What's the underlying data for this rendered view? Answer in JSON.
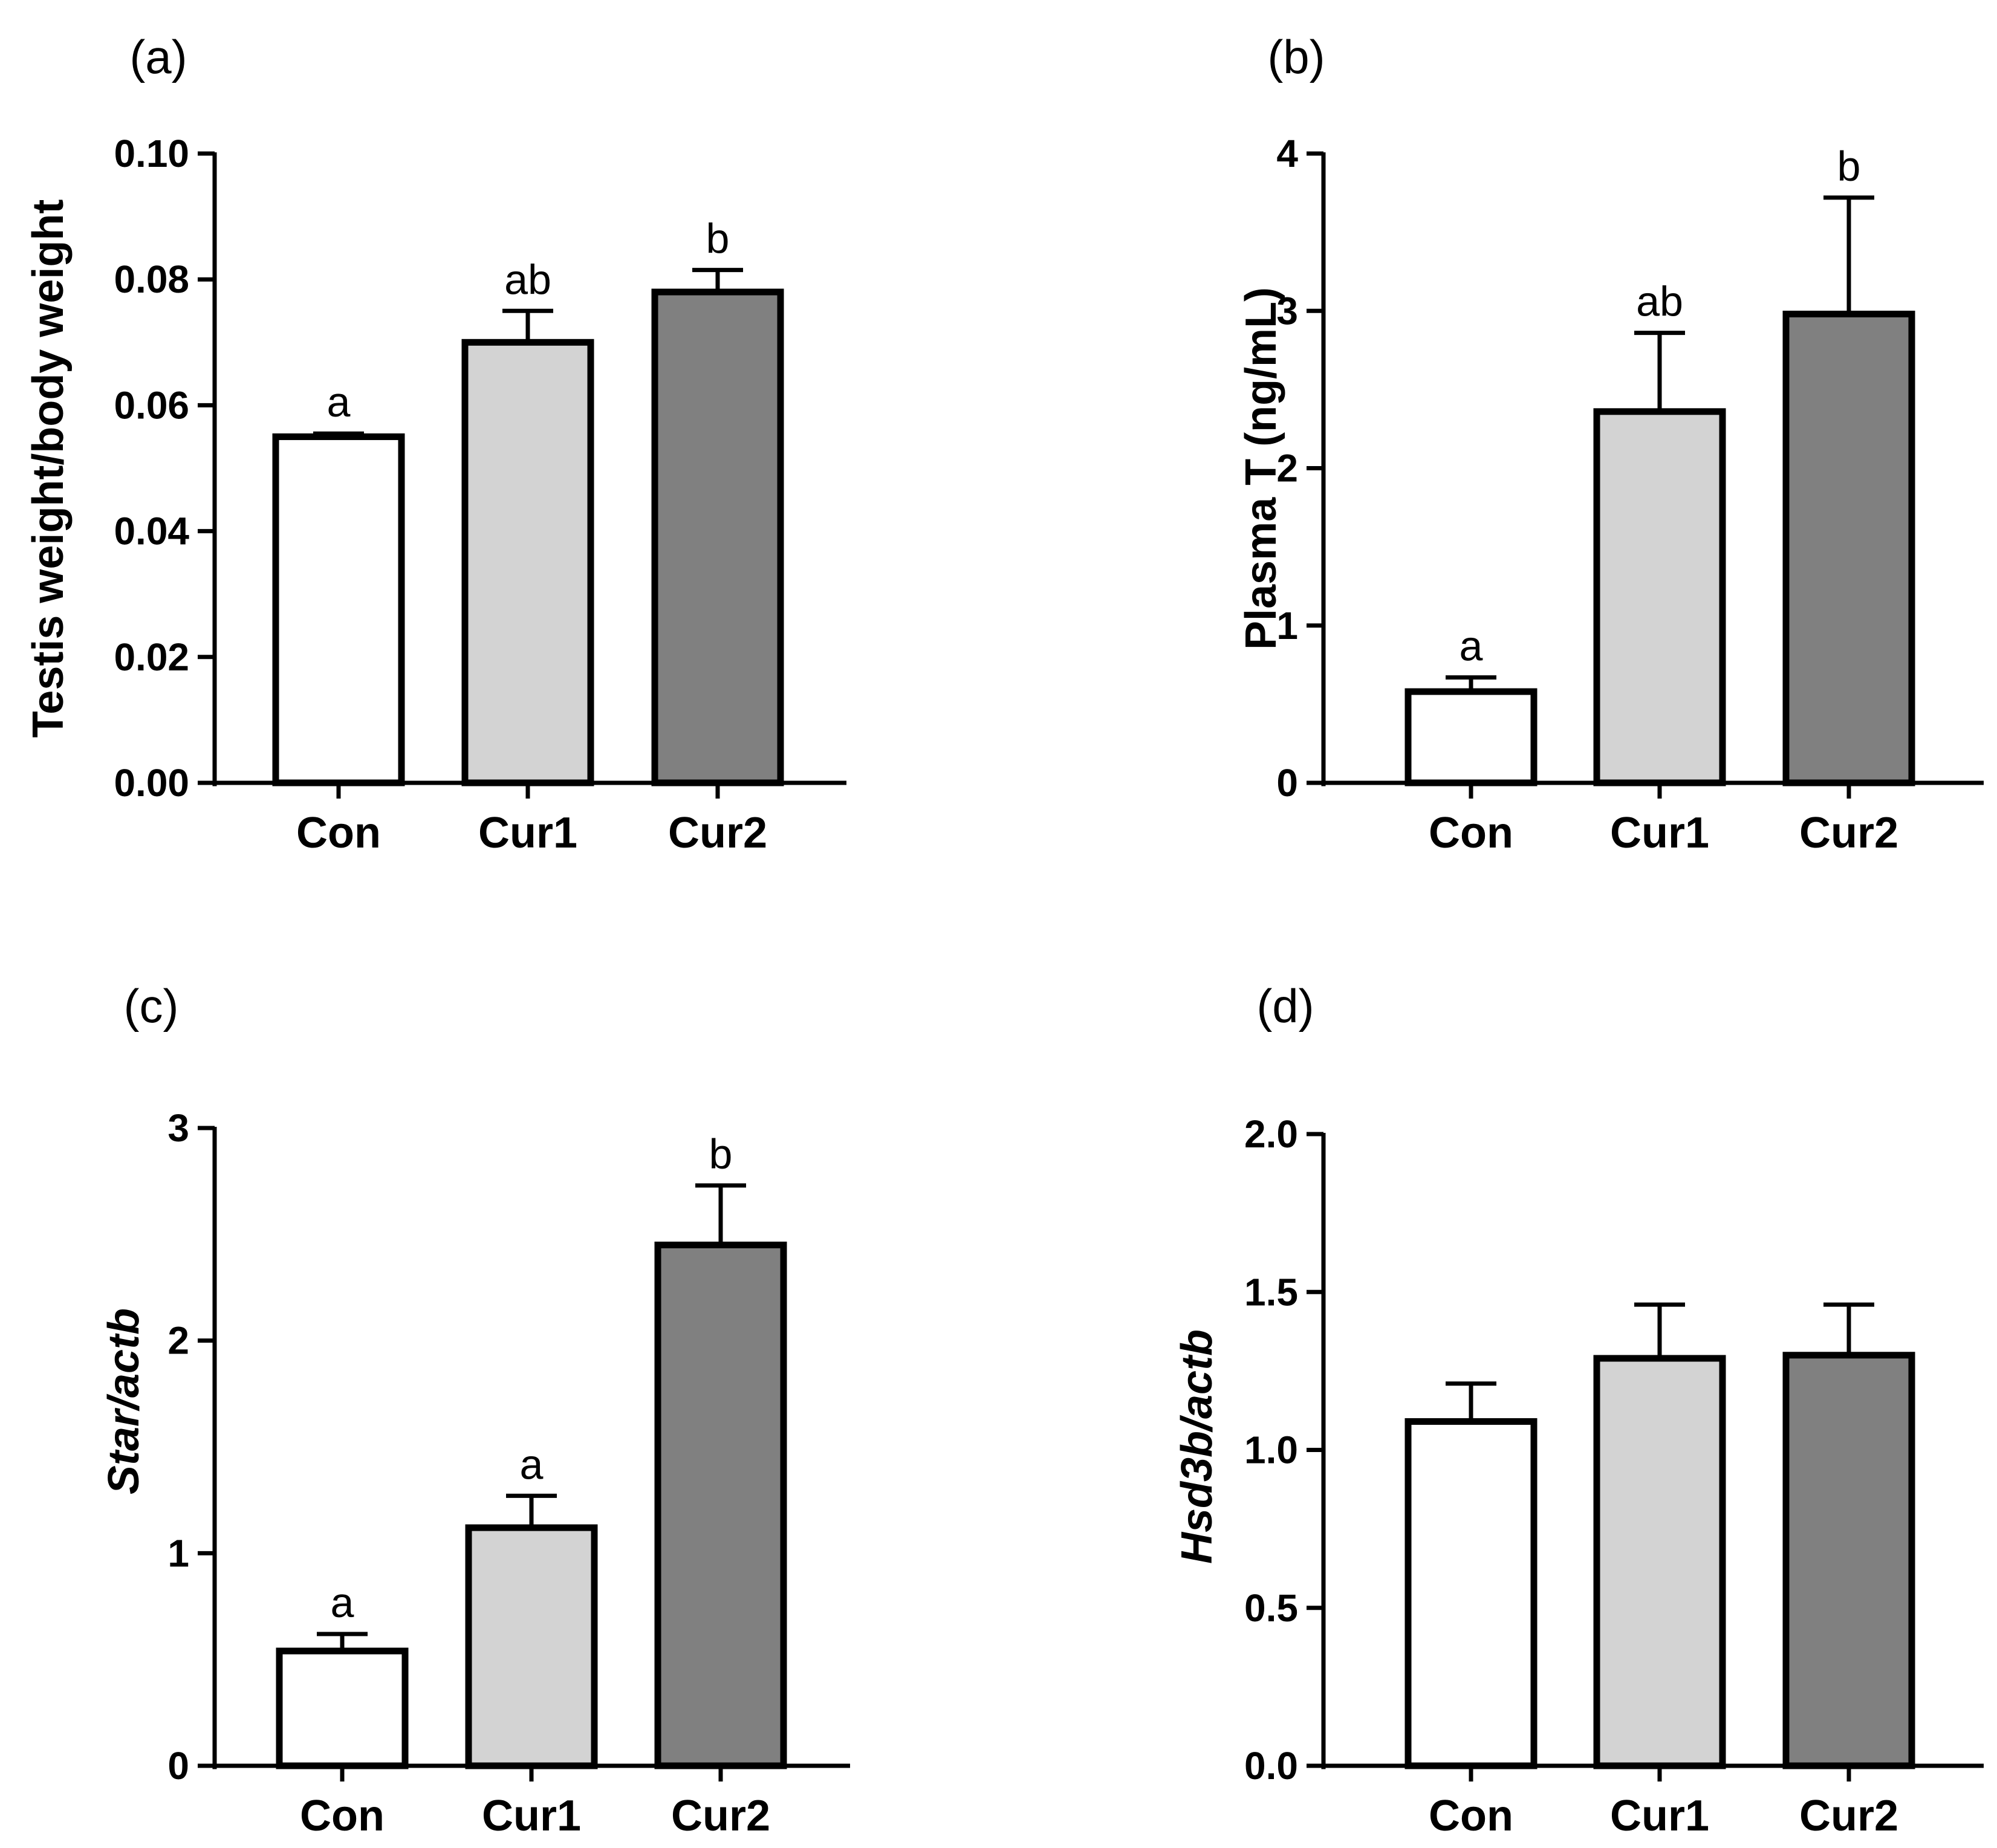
{
  "colors": {
    "Con": "#ffffff",
    "Cur1": "#d3d3d3",
    "Cur2": "#808080",
    "stroke": "#000000"
  },
  "chart_data": [
    {
      "panel": "(a)",
      "type": "bar",
      "categories": [
        "Con",
        "Cur1",
        "Cur2"
      ],
      "values": [
        0.055,
        0.07,
        0.078
      ],
      "errors": [
        0.0005,
        0.005,
        0.0035
      ],
      "significance": [
        "a",
        "ab",
        "b"
      ],
      "ylabel": "Testis weight/body weight",
      "ylabel_italic": false,
      "ylim": [
        0,
        0.1
      ],
      "yticks": [
        0,
        0.02,
        0.04,
        0.06,
        0.08,
        0.1
      ],
      "ytick_labels": [
        "0.00",
        "0.02",
        "0.04",
        "0.06",
        "0.08",
        "0.10"
      ]
    },
    {
      "panel": "(b)",
      "type": "bar",
      "categories": [
        "Con",
        "Cur1",
        "Cur2"
      ],
      "values": [
        0.58,
        2.36,
        2.98
      ],
      "errors": [
        0.09,
        0.5,
        0.74
      ],
      "significance": [
        "a",
        "ab",
        "b"
      ],
      "ylabel": "Plasma T (ng/mL)",
      "ylabel_italic": false,
      "ylim": [
        0,
        4
      ],
      "yticks": [
        0,
        1,
        2,
        3,
        4
      ],
      "ytick_labels": [
        "0",
        "1",
        "2",
        "3",
        "4"
      ]
    },
    {
      "panel": "(c)",
      "type": "bar",
      "categories": [
        "Con",
        "Cur1",
        "Cur2"
      ],
      "values": [
        0.54,
        1.12,
        2.45
      ],
      "errors": [
        0.08,
        0.15,
        0.28
      ],
      "significance": [
        "a",
        "a",
        "b"
      ],
      "ylabel": "Star/actb",
      "ylabel_italic": true,
      "ylim": [
        0,
        3
      ],
      "yticks": [
        0,
        1,
        2,
        3
      ],
      "ytick_labels": [
        "0",
        "1",
        "2",
        "3"
      ]
    },
    {
      "panel": "(d)",
      "type": "bar",
      "categories": [
        "Con",
        "Cur1",
        "Cur2"
      ],
      "values": [
        1.09,
        1.29,
        1.3
      ],
      "errors": [
        0.12,
        0.17,
        0.16
      ],
      "significance": [
        "",
        "",
        ""
      ],
      "ylabel": "Hsd3b/actb",
      "ylabel_italic": true,
      "ylim": [
        0,
        2.0
      ],
      "yticks": [
        0,
        0.5,
        1.0,
        1.5,
        2.0
      ],
      "ytick_labels": [
        "0.0",
        "0.5",
        "1.0",
        "1.5",
        "2.0"
      ]
    }
  ]
}
